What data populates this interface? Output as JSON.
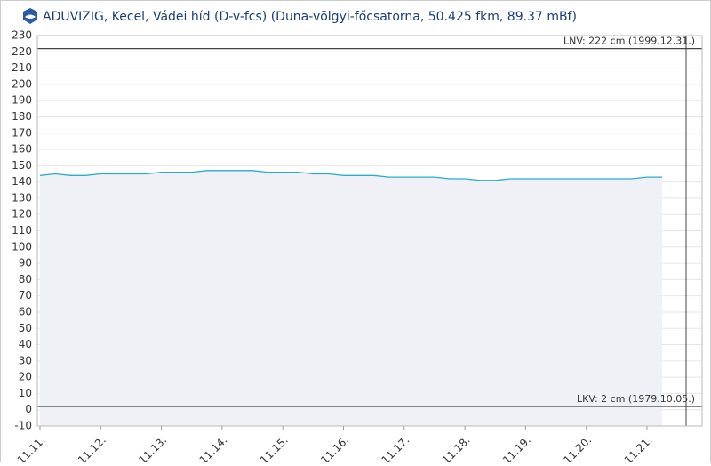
{
  "chart_data": {
    "type": "line",
    "title": "ADUVIZIG, Kecel, Vádei híd  (D-v-fcs) (Duna-völgyi-főcsatorna, 50.425 fkm, 89.37 mBf)",
    "x_labels": [
      "11.11.",
      "11.12.",
      "11.13.",
      "11.14.",
      "11.15.",
      "11.16.",
      "11.17.",
      "11.18.",
      "11.19.",
      "11.20.",
      "11.21."
    ],
    "series": [
      {
        "color": "#2aaccc",
        "values": [
          144,
          145,
          144,
          144,
          145,
          145,
          145,
          145,
          146,
          146,
          146,
          147,
          147,
          147,
          147,
          146,
          146,
          146,
          145,
          145,
          144,
          144,
          144,
          143,
          143,
          143,
          143,
          142,
          142,
          141,
          141,
          142,
          142,
          142,
          142,
          142,
          142,
          142,
          142,
          142,
          143,
          143
        ]
      }
    ],
    "ylim": [
      -10,
      230
    ],
    "yticks": [
      -10,
      0,
      10,
      20,
      30,
      40,
      50,
      60,
      70,
      80,
      90,
      100,
      110,
      120,
      130,
      140,
      150,
      160,
      170,
      180,
      190,
      200,
      210,
      220,
      230
    ],
    "grid": true,
    "annotations": [
      {
        "value": 222,
        "label": "LNV: 222 cm (1999.12.31.)"
      },
      {
        "value": 2,
        "label": "LKV: 2 cm (1979.10.05.)"
      }
    ]
  }
}
